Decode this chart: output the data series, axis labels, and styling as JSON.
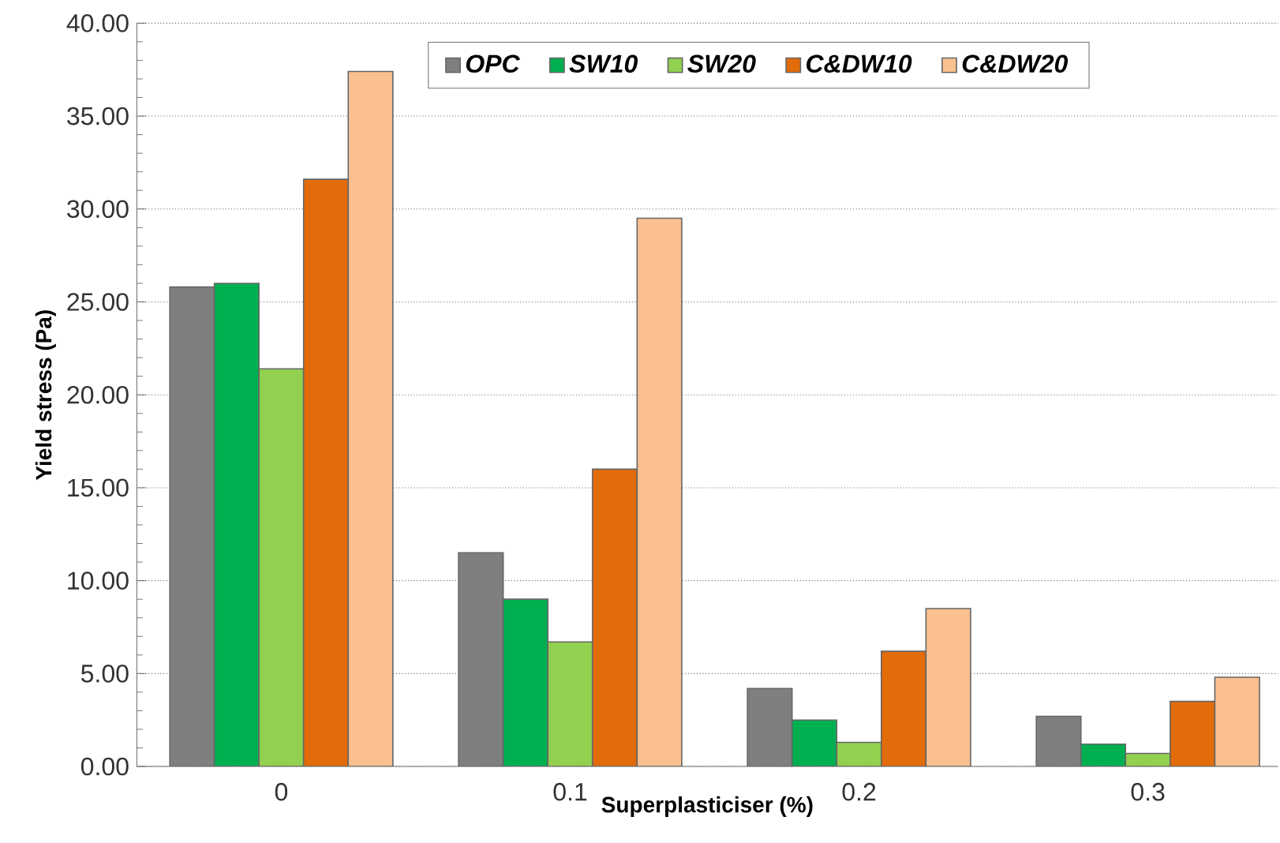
{
  "chart_data": {
    "type": "bar",
    "xlabel": "Superplasticiser (%)",
    "ylabel": "Yield stress (Pa)",
    "categories": [
      "0",
      "0.1",
      "0.2",
      "0.3"
    ],
    "series": [
      {
        "name": "OPC",
        "color": "#7f7f7f",
        "values": [
          25.8,
          11.5,
          4.2,
          2.7
        ]
      },
      {
        "name": "SW10",
        "color": "#00b050",
        "values": [
          26.0,
          9.0,
          2.5,
          1.2
        ]
      },
      {
        "name": "SW20",
        "color": "#92d050",
        "values": [
          21.4,
          6.7,
          1.3,
          0.7
        ]
      },
      {
        "name": "C&DW10",
        "color": "#e36c0a",
        "values": [
          31.6,
          16.0,
          6.2,
          3.5
        ]
      },
      {
        "name": "C&DW20",
        "color": "#fac090",
        "values": [
          37.4,
          29.5,
          8.5,
          4.8
        ]
      }
    ],
    "ylim": [
      0,
      40
    ],
    "yticks": [
      {
        "value": 0,
        "label": "0.00"
      },
      {
        "value": 5,
        "label": "5.00"
      },
      {
        "value": 10,
        "label": "10.00"
      },
      {
        "value": 15,
        "label": "15.00"
      },
      {
        "value": 20,
        "label": "20.00"
      },
      {
        "value": 25,
        "label": "25.00"
      },
      {
        "value": 30,
        "label": "30.00"
      },
      {
        "value": 35,
        "label": "35.00"
      },
      {
        "value": 40,
        "label": "40.00"
      }
    ],
    "grid": "y",
    "legend": "top"
  }
}
